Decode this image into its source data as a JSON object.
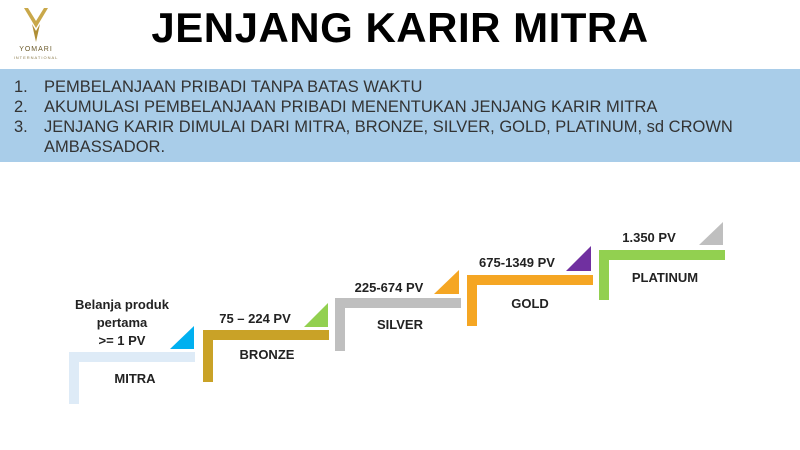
{
  "logo": {
    "brand": "YOMARI",
    "sub": "INTERNATIONAL",
    "color": "#c9a84a"
  },
  "title": "JENJANG KARIR MITRA",
  "banner": {
    "color": "#a9cde9",
    "items": [
      {
        "num": "1.",
        "text": "PEMBELANJAAN PRIBADI TANPA BATAS WAKTU"
      },
      {
        "num": "2.",
        "text": "AKUMULASI PEMBELANJAAN PRIBADI MENENTUKAN JENJANG KARIR MITRA"
      },
      {
        "num": "3.",
        "text": "JENJANG KARIR DIMULAI DARI MITRA, BRONZE, SILVER, GOLD, PLATINUM, sd CROWN AMBASSADOR."
      }
    ]
  },
  "levels": [
    {
      "name": "MITRA",
      "requirement": "Belanja produk pertama >= 1 PV",
      "req_lines": [
        "Belanja produk",
        "pertama",
        ">= 1 PV"
      ],
      "color": "#deebf7",
      "accent": "#00b0f0"
    },
    {
      "name": "BRONZE",
      "requirement": "75 – 224 PV",
      "color": "#c9a227",
      "accent": "#92d050"
    },
    {
      "name": "SILVER",
      "requirement": "225-674 PV",
      "color": "#bfbfbf",
      "accent": "#f5a623"
    },
    {
      "name": "GOLD",
      "requirement": "675-1349 PV",
      "color": "#f5a623",
      "accent": "#7030a0"
    },
    {
      "name": "PLATINUM",
      "requirement": "1.350 PV",
      "color": "#92d050",
      "accent": "#bfbfbf"
    }
  ]
}
